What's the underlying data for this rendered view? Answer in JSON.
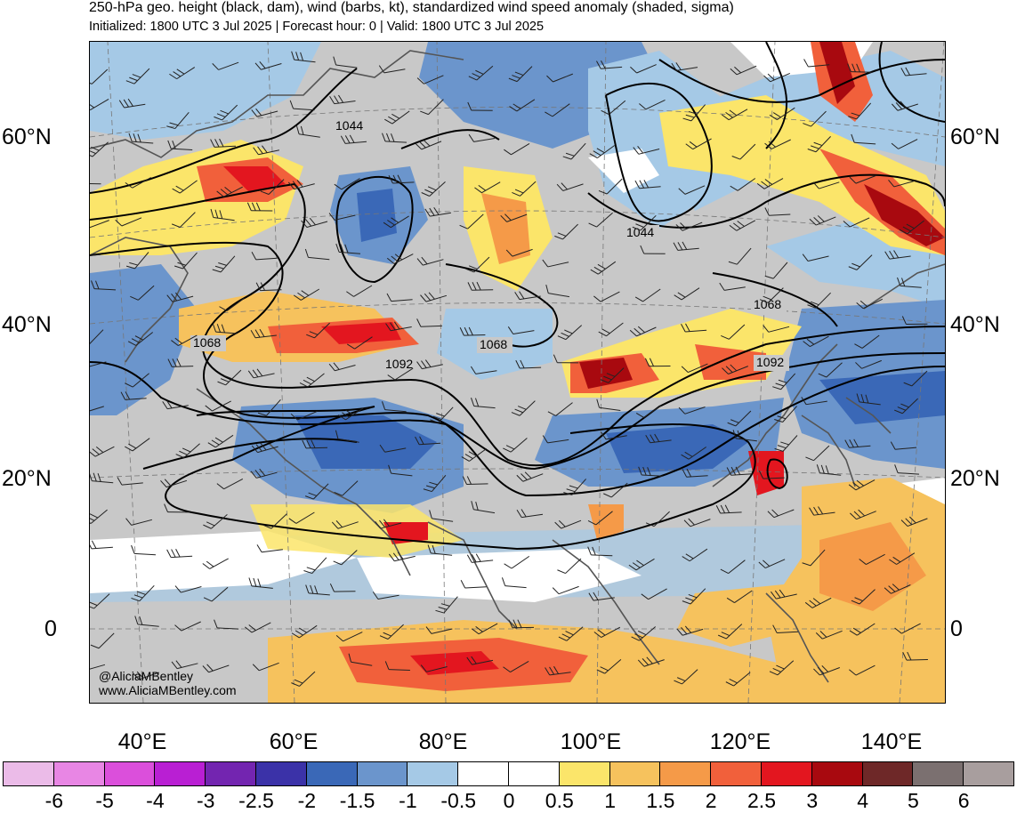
{
  "header": {
    "title": "250-hPa geo. height (black, dam), wind (barbs, kt), standardized wind speed anomaly (shaded, sigma)",
    "subtitle": "Initialized: 1800 UTC 3 Jul 2025 | Forecast hour: 0 | Valid: 1800 UTC 3 Jul 2025"
  },
  "map": {
    "lat_labels": [
      "60°N",
      "40°N",
      "20°N",
      "0"
    ],
    "lon_labels": [
      "40°E",
      "60°E",
      "80°E",
      "100°E",
      "120°E",
      "140°E"
    ],
    "contour_labels": [
      "1044",
      "1044",
      "1068",
      "1068",
      "1068",
      "1092",
      "1092"
    ],
    "credit_handle": "@AliciaMBentley",
    "credit_url": "www.AliciaMBentley.com",
    "land_color": "#c8c8c8",
    "contour_color": "#000000",
    "border_color": "#555555"
  },
  "colorbar": {
    "colors": [
      "#ebbbe8",
      "#e886e4",
      "#db4fdb",
      "#b91fd3",
      "#7325b0",
      "#3b32a8",
      "#3a68b7",
      "#6b95cc",
      "#a5c9e6",
      "#ffffff",
      "#ffffff",
      "#fbe56a",
      "#f6c25d",
      "#f59a48",
      "#f1603b",
      "#e3161f",
      "#a8090f",
      "#6e2828",
      "#7b7070",
      "#a89e9e"
    ],
    "labels": [
      "-6",
      "-5",
      "-4",
      "-3",
      "-2.5",
      "-2",
      "-1.5",
      "-1",
      "-0.5",
      "0",
      "0.5",
      "1",
      "1.5",
      "2",
      "2.5",
      "3",
      "4",
      "5",
      "6"
    ]
  }
}
